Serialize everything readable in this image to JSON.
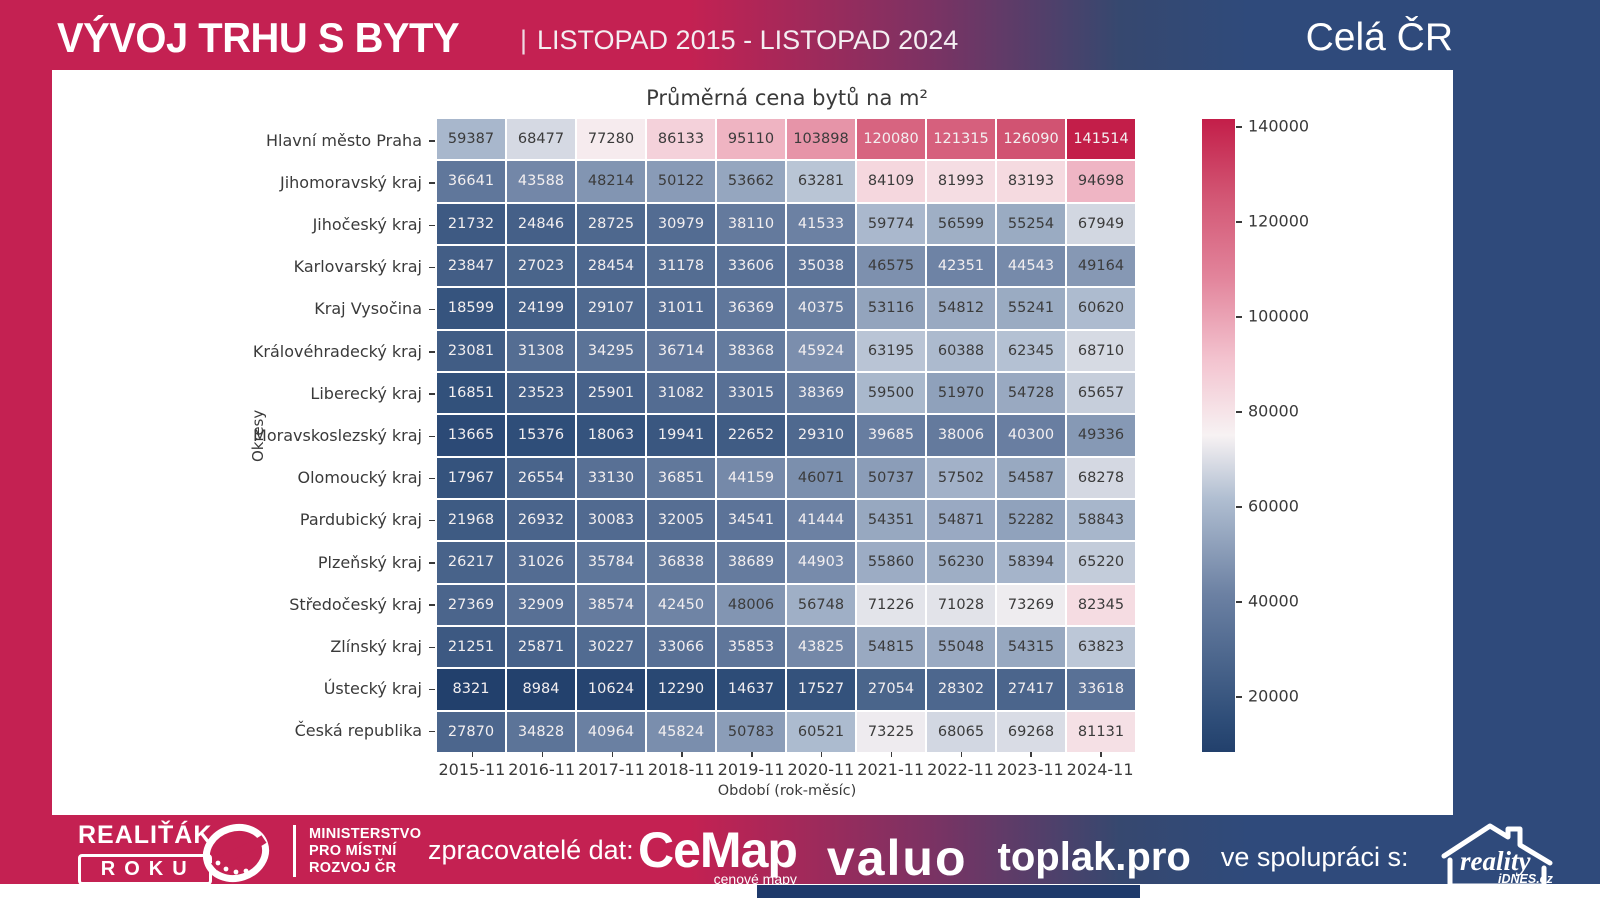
{
  "header": {
    "title": "VÝVOJ TRHU S BYTY",
    "separator": "|",
    "subtitle": "LISTOPAD 2015 - LISTOPAD  2024",
    "region_label": "Celá ČR"
  },
  "chart_data": {
    "type": "heatmap",
    "title": "Průměrná cena bytů na m²",
    "xlabel": "Období (rok-měsíc)",
    "ylabel": "Okresy",
    "x_categories": [
      "2015-11",
      "2016-11",
      "2017-11",
      "2018-11",
      "2019-11",
      "2020-11",
      "2021-11",
      "2022-11",
      "2023-11",
      "2024-11"
    ],
    "y_categories": [
      "Hlavní město Praha",
      "Jihomoravský kraj",
      "Jihočeský kraj",
      "Karlovarský kraj",
      "Kraj Vysočina",
      "Královéhradecký kraj",
      "Liberecký kraj",
      "Moravskoslezský kraj",
      "Olomoucký kraj",
      "Pardubický kraj",
      "Plzeňský kraj",
      "Středočeský kraj",
      "Zlínský kraj",
      "Ústecký kraj",
      "Česká republika"
    ],
    "values": [
      [
        59387,
        68477,
        77280,
        86133,
        95110,
        103898,
        120080,
        121315,
        126090,
        141514
      ],
      [
        36641,
        43588,
        48214,
        50122,
        53662,
        63281,
        84109,
        81993,
        83193,
        94698
      ],
      [
        21732,
        24846,
        28725,
        30979,
        38110,
        41533,
        59774,
        56599,
        55254,
        67949
      ],
      [
        23847,
        27023,
        28454,
        31178,
        33606,
        35038,
        46575,
        42351,
        44543,
        49164
      ],
      [
        18599,
        24199,
        29107,
        31011,
        36369,
        40375,
        53116,
        54812,
        55241,
        60620
      ],
      [
        23081,
        31308,
        34295,
        36714,
        38368,
        45924,
        63195,
        60388,
        62345,
        68710
      ],
      [
        16851,
        23523,
        25901,
        31082,
        33015,
        38369,
        59500,
        51970,
        54728,
        65657
      ],
      [
        13665,
        15376,
        18063,
        19941,
        22652,
        29310,
        39685,
        38006,
        40300,
        49336
      ],
      [
        17967,
        26554,
        33130,
        36851,
        44159,
        46071,
        50737,
        57502,
        54587,
        68278
      ],
      [
        21968,
        26932,
        30083,
        32005,
        34541,
        41444,
        54351,
        54871,
        52282,
        58843
      ],
      [
        26217,
        31026,
        35784,
        36838,
        38689,
        44903,
        55860,
        56230,
        58394,
        65220
      ],
      [
        27369,
        32909,
        38574,
        42450,
        48006,
        56748,
        71226,
        71028,
        73269,
        82345
      ],
      [
        21251,
        25871,
        30227,
        33066,
        35853,
        43825,
        54815,
        55048,
        54315,
        63823
      ],
      [
        8321,
        8984,
        10624,
        12290,
        14637,
        17527,
        27054,
        28302,
        27417,
        33618
      ],
      [
        27870,
        34828,
        40964,
        45824,
        50783,
        60521,
        73225,
        68065,
        69268,
        81131
      ]
    ],
    "vmin": 8321,
    "vmax": 141514,
    "colorbar_ticks": [
      20000,
      40000,
      60000,
      80000,
      100000,
      120000,
      140000
    ],
    "legend_position": "right",
    "grid": false,
    "colormap_stops": [
      {
        "t": 0.0,
        "color": "#22406c"
      },
      {
        "t": 0.05,
        "color": "#2e4d78"
      },
      {
        "t": 0.25,
        "color": "#6c81a3"
      },
      {
        "t": 0.4,
        "color": "#b0bed1"
      },
      {
        "t": 0.5,
        "color": "#f7f2f3"
      },
      {
        "t": 0.62,
        "color": "#f3c3cf"
      },
      {
        "t": 0.75,
        "color": "#e2849b"
      },
      {
        "t": 0.88,
        "color": "#d25573"
      },
      {
        "t": 1.0,
        "color": "#c31e49"
      }
    ]
  },
  "footer": {
    "realitak_line1": "REALIŤÁK",
    "realitak_line2": "ROKU",
    "ministry_lines": [
      "MINISTERSTVO",
      "PRO MÍSTNÍ",
      "ROZVOJ ČR"
    ],
    "processors_label": "zpracovatelé dat:",
    "cemap_name": "CeMap",
    "cemap_sub": "cenové mapy",
    "valuo_name": "valuo",
    "toplak_name": "toplak.pro",
    "cooperation_label": "ve spolupráci s:",
    "reality_name": "reality",
    "reality_sub": "iDNES.cz"
  },
  "colors": {
    "brand_crimson": "#c42152",
    "brand_navy": "#2f4a7b",
    "cell_text_dark": "#3b3b3b",
    "cell_text_light": "#f3eff0",
    "bottom_bar": "#1e3a6b"
  }
}
